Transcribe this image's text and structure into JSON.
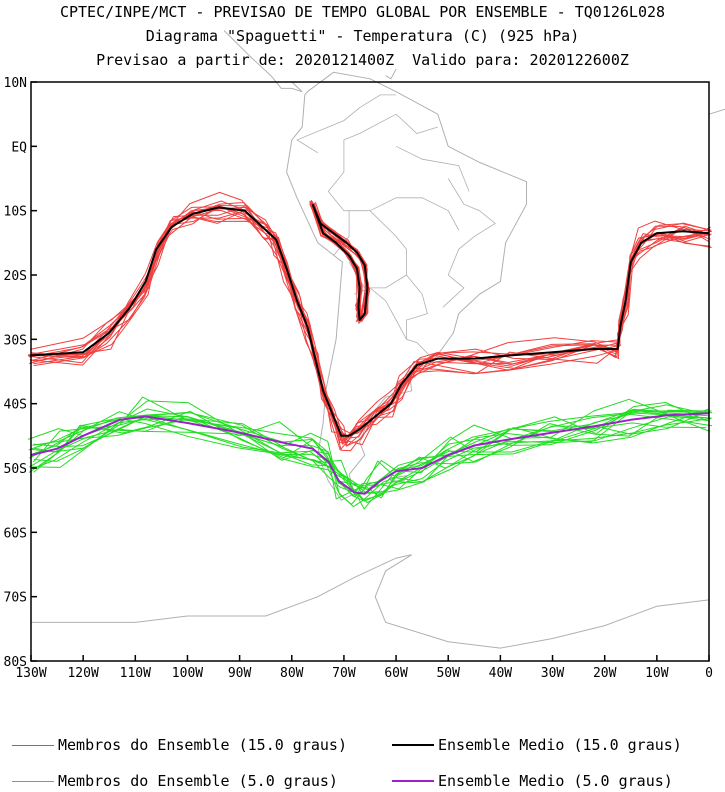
{
  "titles": [
    "CPTEC/INPE/MCT - PREVISAO DE TEMPO GLOBAL POR ENSEMBLE - TQ0126L028",
    "Diagrama \"Spaguetti\" - Temperatura (C) (925 hPa)",
    "Previsao a partir de: 2020121400Z  Valido para: 2020122600Z"
  ],
  "colors": {
    "member_15": "#f04040",
    "mean_15": "#000000",
    "member_5": "#22dd22",
    "mean_5": "#9a22c8",
    "coastline": "#b0b0b0"
  },
  "legend": [
    {
      "label": "Membros do Ensemble (15.0 graus)",
      "color": "#f04040",
      "kind": "member"
    },
    {
      "label": "Ensemble Medio (15.0 graus)",
      "color": "#000000",
      "kind": "mean"
    },
    {
      "label": "Membros do Ensemble (5.0 graus)",
      "color": "#22dd22",
      "kind": "member"
    },
    {
      "label": "Ensemble Medio (5.0 graus)",
      "color": "#9a22c8",
      "kind": "mean"
    }
  ],
  "chart_data": {
    "type": "line",
    "title": "Diagrama \"Spaguetti\" - Temperatura (C) (925 hPa)",
    "x_ticks": [
      "130W",
      "120W",
      "110W",
      "100W",
      "90W",
      "80W",
      "70W",
      "60W",
      "50W",
      "40W",
      "30W",
      "20W",
      "10W",
      "0"
    ],
    "y_ticks": [
      "10N",
      "EQ",
      "10S",
      "20S",
      "30S",
      "40S",
      "50S",
      "60S",
      "70S",
      "80S"
    ],
    "xlim": [
      -130,
      0
    ],
    "ylim": [
      -80,
      10
    ],
    "series": [
      {
        "name": "Ensemble Medio (15.0 graus)",
        "contour": 15,
        "points": [
          [
            -130,
            -32.5
          ],
          [
            -120,
            -32
          ],
          [
            -115,
            -29
          ],
          [
            -111,
            -25
          ],
          [
            -108,
            -21
          ],
          [
            -106,
            -16
          ],
          [
            -103,
            -12.5
          ],
          [
            -99,
            -10.5
          ],
          [
            -94,
            -9.5
          ],
          [
            -89,
            -10
          ],
          [
            -85,
            -13
          ],
          [
            -83,
            -14.5
          ],
          [
            -81,
            -19
          ],
          [
            -79,
            -24
          ],
          [
            -77,
            -28
          ],
          [
            -75.5,
            -33
          ],
          [
            -74,
            -38
          ],
          [
            -72,
            -42
          ],
          [
            -70.5,
            -45
          ],
          [
            -69,
            -45
          ],
          [
            -67,
            -44
          ],
          [
            -64,
            -42
          ],
          [
            -61,
            -40
          ],
          [
            -59,
            -37
          ],
          [
            -56,
            -34
          ],
          [
            -52,
            -33
          ],
          [
            -45,
            -33
          ],
          [
            -38,
            -32.5
          ],
          [
            -30,
            -32
          ],
          [
            -22,
            -31.5
          ],
          [
            -17.5,
            -31.5
          ],
          [
            -17,
            -28
          ],
          [
            -16,
            -24
          ],
          [
            -15,
            -18
          ],
          [
            -13,
            -15
          ],
          [
            -10,
            -13.5
          ],
          [
            -5,
            -13.2
          ],
          [
            0,
            -13.5
          ]
        ]
      },
      {
        "name": "Ensemble Medio (15.0 graus) Andes",
        "contour": 15,
        "points": [
          [
            -76,
            -9
          ],
          [
            -74.5,
            -12
          ],
          [
            -72,
            -13.5
          ],
          [
            -69.5,
            -15
          ],
          [
            -67.5,
            -16.5
          ],
          [
            -66,
            -18.5
          ],
          [
            -65.5,
            -22
          ],
          [
            -66,
            -26
          ],
          [
            -67,
            -27
          ],
          [
            -67.2,
            -25
          ],
          [
            -67,
            -22
          ],
          [
            -67.5,
            -19
          ],
          [
            -69,
            -17
          ],
          [
            -71.5,
            -15
          ],
          [
            -74,
            -13.5
          ],
          [
            -76,
            -9
          ]
        ]
      },
      {
        "name": "Ensemble Medio (5.0 graus)",
        "contour": 5,
        "points": [
          [
            -130,
            -48
          ],
          [
            -125,
            -47
          ],
          [
            -120,
            -45
          ],
          [
            -113,
            -42.5
          ],
          [
            -108,
            -42
          ],
          [
            -100,
            -43
          ],
          [
            -90,
            -44.5
          ],
          [
            -82,
            -46
          ],
          [
            -76,
            -47
          ],
          [
            -73,
            -49
          ],
          [
            -71,
            -52
          ],
          [
            -68,
            -53.8
          ],
          [
            -66,
            -54
          ],
          [
            -63,
            -52
          ],
          [
            -60,
            -50.5
          ],
          [
            -55,
            -50
          ],
          [
            -50,
            -48
          ],
          [
            -45,
            -46.5
          ],
          [
            -38,
            -45.5
          ],
          [
            -30,
            -44.5
          ],
          [
            -22,
            -43.5
          ],
          [
            -15,
            -42.5
          ],
          [
            -8,
            -41.8
          ],
          [
            0,
            -41.5
          ]
        ]
      }
    ],
    "ensemble_members": [
      {
        "contour": 15,
        "count": 15
      },
      {
        "contour": 5,
        "count": 15
      }
    ]
  }
}
